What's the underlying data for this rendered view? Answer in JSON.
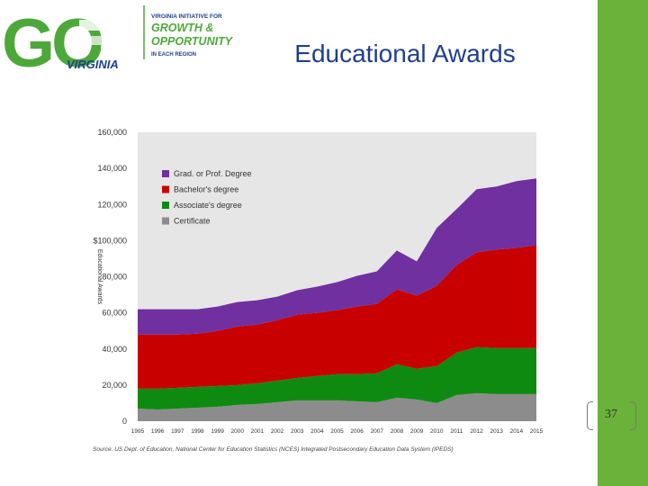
{
  "slide": {
    "title": "Educational Awards",
    "page_number": "37"
  },
  "logo": {
    "go": "GO",
    "state": "VIRGINIA",
    "tagline_top": "VIRGINIA INITIATIVE FOR",
    "tagline_line1": "GROWTH &",
    "tagline_line2": "OPPORTUNITY",
    "tagline_bottom": "IN EACH REGION"
  },
  "colors": {
    "sidebar": "#6ab23a",
    "title": "#1f3f8c",
    "logo_green": "#4da83a",
    "logo_blue": "#1f3f8c"
  },
  "chart_data": {
    "type": "area",
    "stacked": true,
    "ylabel": "Educational Awards",
    "ylim": [
      0,
      160000
    ],
    "yticks": [
      "0",
      "20,000",
      "40,000",
      "60,000",
      "80,000",
      "$100,000",
      "120,000",
      "140,000",
      "160,000"
    ],
    "x": [
      "1995",
      "1996",
      "1997",
      "1998",
      "1999",
      "2000",
      "2001",
      "2002",
      "2003",
      "2004",
      "2005",
      "2006",
      "2007",
      "2008",
      "2009",
      "2010",
      "2011",
      "2012",
      "2013",
      "2014",
      "2015"
    ],
    "legend_position": "top-left",
    "grid": false,
    "series": [
      {
        "name": "Certificate",
        "color": "#8c8c8c",
        "values": [
          7000,
          6500,
          7000,
          7500,
          8000,
          9000,
          9500,
          10500,
          11500,
          11500,
          11500,
          11000,
          10500,
          13000,
          12000,
          10000,
          14500,
          15500,
          15000,
          15000,
          15000
        ]
      },
      {
        "name": "Associate's degree",
        "color": "#0f8a10",
        "values": [
          11000,
          11500,
          11500,
          11500,
          11500,
          11000,
          11500,
          12000,
          12500,
          13500,
          14500,
          15000,
          16000,
          18500,
          17000,
          20500,
          23500,
          25500,
          25500,
          25500,
          25500
        ]
      },
      {
        "name": "Bachelor's degree",
        "color": "#c80000",
        "values": [
          30000,
          30000,
          29500,
          29500,
          30500,
          32500,
          32500,
          33500,
          35000,
          35000,
          35500,
          37500,
          38500,
          41500,
          40500,
          44500,
          48500,
          52500,
          54500,
          55500,
          57000
        ]
      },
      {
        "name": "Grad. or Prof. Degree",
        "color": "#7030a0",
        "values": [
          14000,
          14000,
          14000,
          13500,
          13500,
          13500,
          13500,
          13000,
          13500,
          14500,
          15500,
          17000,
          18000,
          21500,
          19000,
          32000,
          31000,
          35000,
          35000,
          37000,
          37000
        ]
      }
    ],
    "source": "Source: US Dept. of Education, National Center for Education Statistics (NCES) Integrated Postsecondary Education Data System (IPEDS)"
  }
}
